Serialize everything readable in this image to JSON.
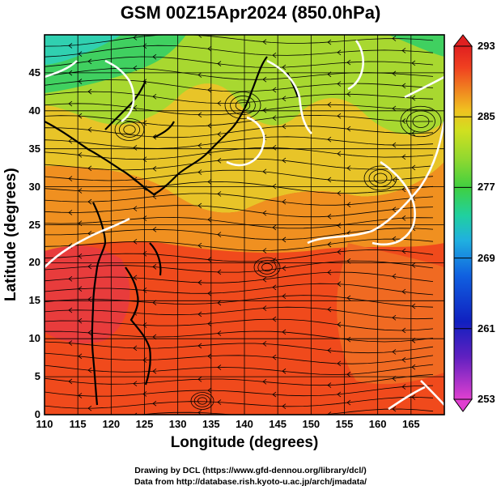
{
  "title": "GSM 00Z15Apr2024 (850.0hPa)",
  "xlabel": "Longitude (degrees)",
  "ylabel": "Latitude (degrees)",
  "credits": [
    "Drawing by DCL (https://www.gfd-dennou.org/library/dcl/)",
    "Data from http://database.rish.kyoto-u.ac.jp/arch/jmadata/"
  ],
  "map": {
    "lon_range": [
      110,
      170
    ],
    "lat_range": [
      0,
      50
    ],
    "lon_ticks": [
      "110",
      "115",
      "120",
      "125",
      "130",
      "135",
      "140",
      "145",
      "150",
      "155",
      "160",
      "165"
    ],
    "lat_ticks": [
      "0",
      "5",
      "10",
      "15",
      "20",
      "25",
      "30",
      "35",
      "40",
      "45"
    ],
    "colorbar": {
      "ticks": [
        "293",
        "285",
        "277",
        "269",
        "261",
        "253"
      ],
      "range": [
        253,
        293
      ],
      "palette": [
        "#e040d0",
        "#6020c0",
        "#1020c0",
        "#1060e0",
        "#20b0e0",
        "#20d0a0",
        "#40d040",
        "#90d830",
        "#d0e020",
        "#f0c020",
        "#f08020",
        "#f04020",
        "#e02020"
      ]
    },
    "contour_color": "#ffffff",
    "streamline_color": "#000000"
  }
}
